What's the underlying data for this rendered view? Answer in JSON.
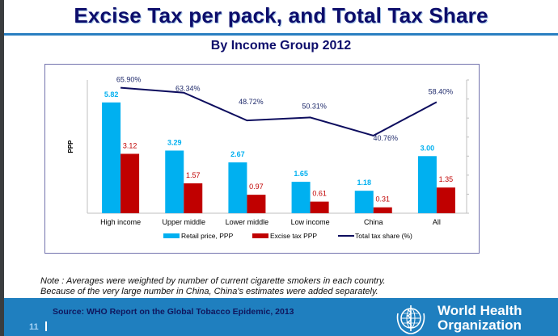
{
  "slide": {
    "title": "Excise Tax per pack, and Total Tax Share",
    "subtitle": "By Income Group 2012",
    "note_lines": [
      "Note : Averages were weighted by number of current cigarette smokers in each country.",
      "Because of the very large number in China, China's estimates were added separately."
    ],
    "source": "Source: WHO Report on the Global Tobacco Epidemic, 2013",
    "page_number": "11",
    "logo_text_line1": "World Health",
    "logo_text_line2": "Organization",
    "logo_icon": "who-emblem-icon"
  },
  "colors": {
    "title": "#0d0d6b",
    "retail": "#00b0f0",
    "excise": "#c00000",
    "line": "#0d0d5e",
    "footer": "#1f7fbf"
  },
  "chart_data": {
    "type": "bar",
    "title": "",
    "xlabel": "",
    "ylabel": "PPP",
    "categories": [
      "High income",
      "Upper middle",
      "Lower middle",
      "Low income",
      "China",
      "All"
    ],
    "series": [
      {
        "name": "Retail price, PPP",
        "kind": "bar",
        "axis": "left",
        "values": [
          5.82,
          3.29,
          2.67,
          1.65,
          1.18,
          3.0
        ],
        "labels": [
          "5.82",
          "3.29",
          "2.67",
          "1.65",
          "1.18",
          "3.00"
        ]
      },
      {
        "name": "Excise tax PPP",
        "kind": "bar",
        "axis": "left",
        "values": [
          3.12,
          1.57,
          0.97,
          0.61,
          0.31,
          1.35
        ],
        "labels": [
          "3.12",
          "1.57",
          "0.97",
          "0.61",
          "0.31",
          "1.35"
        ]
      },
      {
        "name": "Total tax share (%)",
        "kind": "line",
        "axis": "right",
        "values": [
          65.9,
          63.34,
          48.72,
          50.31,
          40.76,
          58.4
        ],
        "labels": [
          "65.90%",
          "63.34%",
          "48.72%",
          "50.31%",
          "40.76%",
          "58.40%"
        ]
      }
    ],
    "ylim": [
      0,
      7
    ],
    "y2lim": [
      0,
      70
    ],
    "y2_ticks": 7,
    "grid": false,
    "legend_position": "bottom"
  }
}
